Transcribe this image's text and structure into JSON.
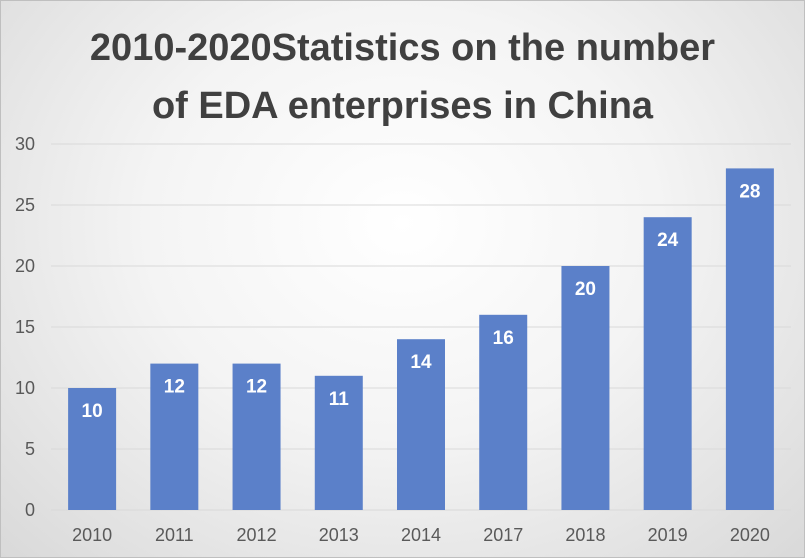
{
  "chart_data": {
    "type": "bar",
    "title_lines": [
      "2010-2020Statistics on the number",
      "of EDA enterprises in China"
    ],
    "categories": [
      "2010",
      "2011",
      "2012",
      "2013",
      "2014",
      "2017",
      "2018",
      "2019",
      "2020"
    ],
    "values": [
      10,
      12,
      12,
      11,
      14,
      16,
      20,
      24,
      28
    ],
    "ylim": [
      0,
      30
    ],
    "yticks": [
      0,
      5,
      10,
      15,
      20,
      25,
      30
    ],
    "xlabel": "",
    "ylabel": "",
    "grid": true,
    "legend": "none",
    "data_labels": true,
    "bar_color": "#5B80C9",
    "label_color": "#FFFFFF"
  }
}
